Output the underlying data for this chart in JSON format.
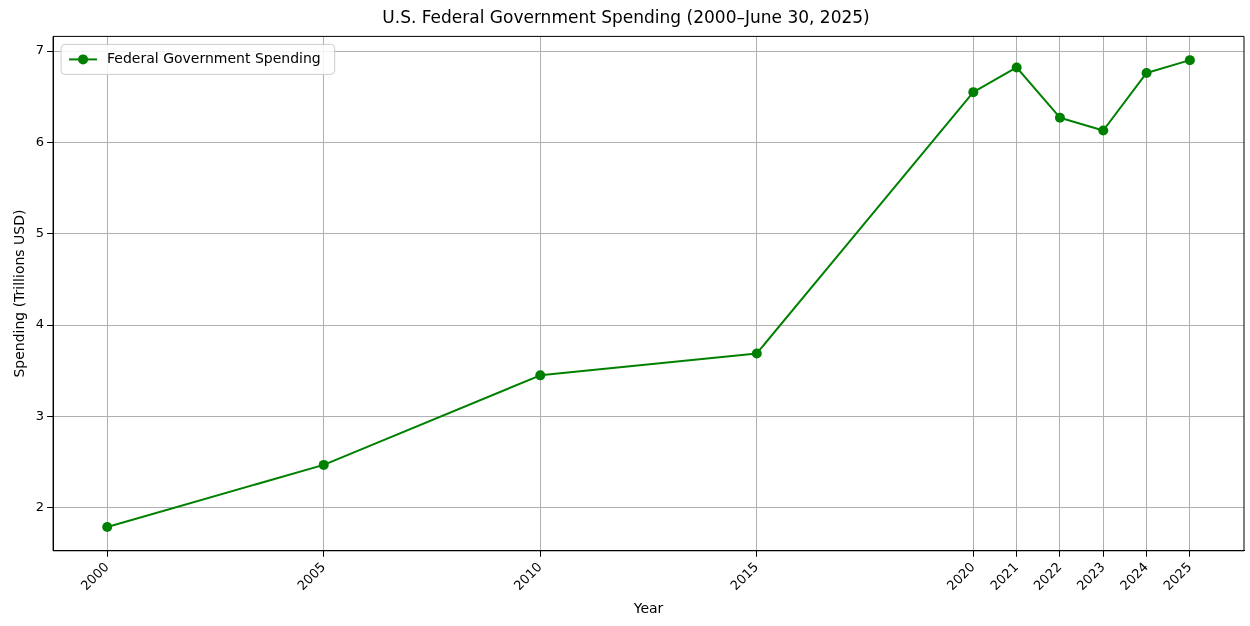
{
  "chart_data": {
    "type": "line",
    "title": "U.S. Federal Government Spending (2000–June 30, 2025)",
    "xlabel": "Year",
    "ylabel": "Spending (Trillions USD)",
    "x": [
      2000,
      2005,
      2010,
      2015,
      2020,
      2021,
      2022,
      2023,
      2024,
      2025
    ],
    "series": [
      {
        "name": "Federal Government Spending",
        "color": "#008000",
        "values": [
          1.79,
          2.47,
          3.45,
          3.69,
          6.55,
          6.82,
          6.27,
          6.13,
          6.76,
          6.9
        ]
      }
    ],
    "xlim": [
      1998.75,
      2026.25
    ],
    "xticks": [
      2000,
      2005,
      2010,
      2015,
      2020,
      2021,
      2022,
      2023,
      2024,
      2025
    ],
    "ylim": [
      1.53,
      7.16
    ],
    "yticks": [
      2,
      3,
      4,
      5,
      6,
      7
    ],
    "grid": true,
    "legend": "top left",
    "marker": "circle",
    "line_style": "solid"
  }
}
